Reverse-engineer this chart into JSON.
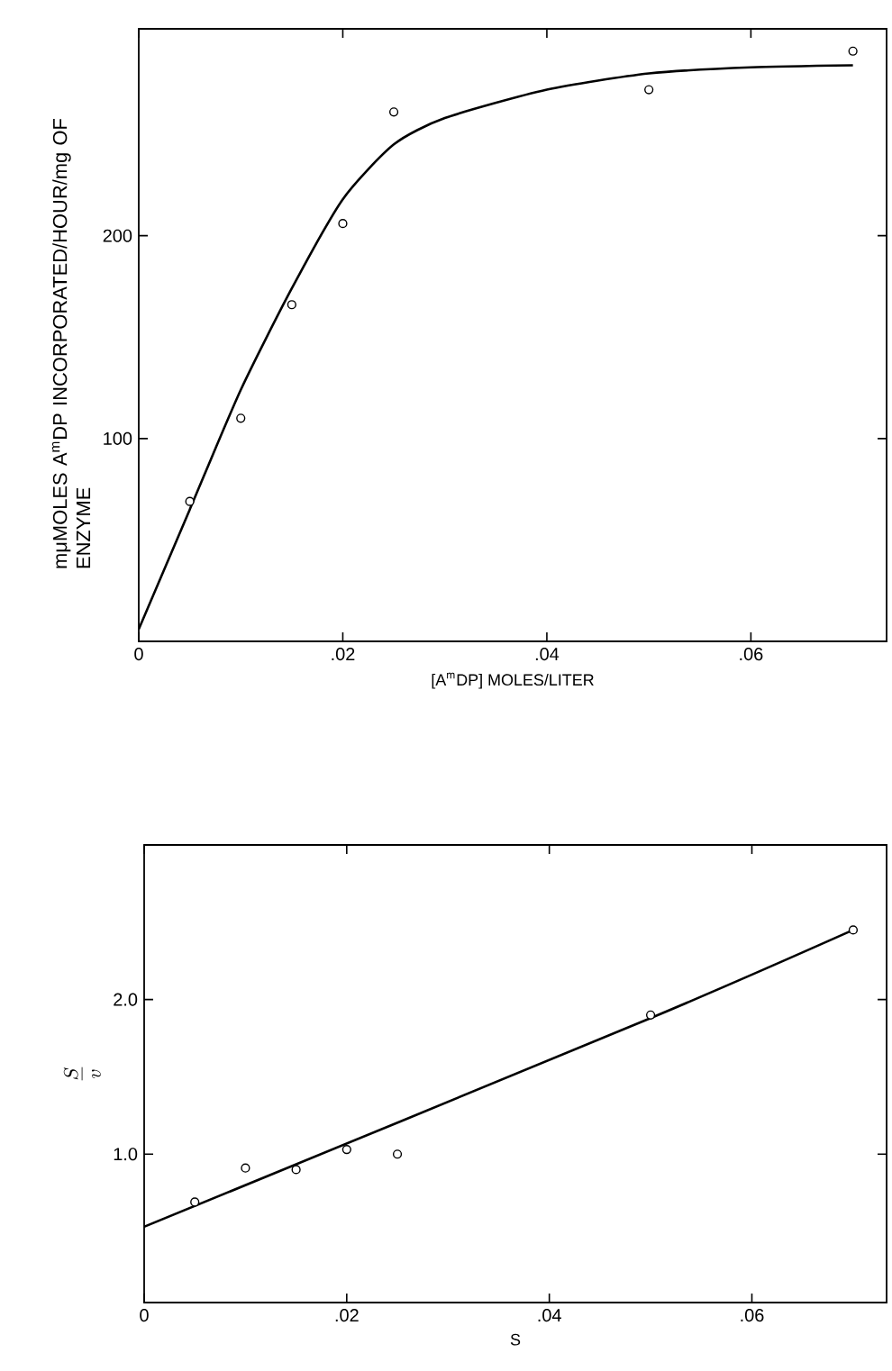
{
  "chart_data": [
    {
      "type": "scatter",
      "xlabel": "[A$^{m}$DP] MOLES/LITER",
      "ylabel": "mμMOLES A$^{m}$DP INCORPORATED/HOUR/mg OF ENZYME",
      "xlim": [
        0,
        0.0733
      ],
      "ylim": [
        0,
        302
      ],
      "xticks": [
        0,
        {
          "value": 0.02,
          "label": ".02"
        },
        {
          "value": 0.04,
          "label": ".04"
        },
        {
          "value": 0.06,
          "label": ".06"
        }
      ],
      "yticks": [
        100,
        200
      ],
      "grid": false,
      "series": [
        {
          "color": "#000000",
          "marker": "circle",
          "x": [
            0.005,
            0.01,
            0.015,
            0.02,
            0.025,
            0.05,
            0.07
          ],
          "values": [
            69,
            110,
            166,
            206,
            261,
            272,
            291
          ]
        },
        {
          "type": "line",
          "color": "#000000",
          "marker": "none",
          "line_style": "solid",
          "x": [
            0,
            0.005,
            0.01,
            0.015,
            0.02,
            0.025,
            0.03,
            0.04,
            0.05,
            0.06,
            0.07
          ],
          "values": [
            6,
            65,
            124,
            174,
            218,
            245,
            258,
            272,
            280,
            283,
            284
          ]
        }
      ]
    },
    {
      "type": "scatter",
      "xlabel": "S",
      "ylabel": "\\frac{S}{v}",
      "xlim": [
        0,
        0.0733
      ],
      "ylim": [
        0.04,
        3.0
      ],
      "xticks": [
        0,
        {
          "value": 0.02,
          "label": ".02"
        },
        {
          "value": 0.04,
          "label": ".04"
        },
        {
          "value": 0.06,
          "label": ".06"
        }
      ],
      "yticks": [
        {
          "value": 1,
          "label": "1.0"
        },
        {
          "value": 2,
          "label": "2.0"
        }
      ],
      "grid": false,
      "series": [
        {
          "color": "#000000",
          "marker": "circle",
          "x": [
            0.005,
            0.01,
            0.015,
            0.02,
            0.025,
            0.05,
            0.07
          ],
          "values": [
            0.69,
            0.91,
            0.9,
            1.03,
            1.0,
            1.9,
            2.45
          ]
        },
        {
          "type": "line",
          "color": "#000000",
          "marker": "none",
          "line_style": "solid",
          "x": [
            0,
            0.05,
            0.07
          ],
          "values": [
            0.53,
            1.88,
            2.45
          ]
        }
      ]
    }
  ]
}
